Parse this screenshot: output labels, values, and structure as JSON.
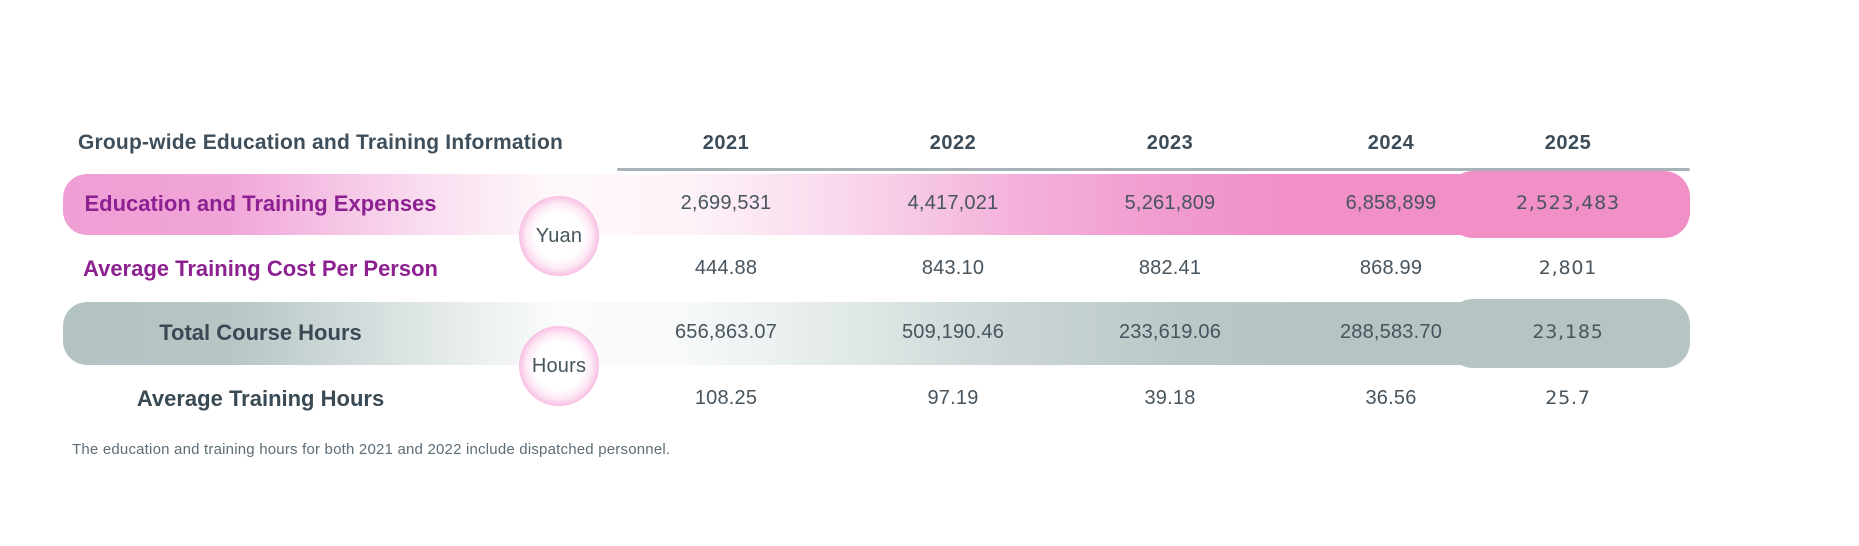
{
  "table": {
    "title": "Group-wide Education and Training Information",
    "years": [
      "2021",
      "2022",
      "2023",
      "2024",
      "2025"
    ],
    "unit_badges": [
      {
        "label": "Yuan"
      },
      {
        "label": "Hours"
      }
    ],
    "rows": [
      {
        "label": "Education and Training Expenses",
        "unit": "Yuan",
        "values": [
          "2,699,531",
          "4,417,021",
          "5,261,809",
          "6,858,899",
          "2,523,483"
        ]
      },
      {
        "label": "Average Training Cost Per Person",
        "unit": "Yuan",
        "values": [
          "444.88",
          "843.10",
          "882.41",
          "868.99",
          "2,801"
        ]
      },
      {
        "label": "Total Course Hours",
        "unit": "Hours",
        "values": [
          "656,863.07",
          "509,190.46",
          "233,619.06",
          "288,583.70",
          "23,185"
        ]
      },
      {
        "label": "Average Training Hours",
        "unit": "Hours",
        "values": [
          "108.25",
          "97.19",
          "39.18",
          "36.56",
          "25.7"
        ]
      }
    ],
    "footnote": "The education and training hours for both 2021 and 2022 include dispatched personnel."
  },
  "chart_data": {
    "type": "table",
    "title": "Group-wide Education and Training Information",
    "columns": [
      "2021",
      "2022",
      "2023",
      "2024",
      "2025"
    ],
    "series": [
      {
        "name": "Education and Training Expenses",
        "unit": "Yuan",
        "values": [
          2699531,
          4417021,
          5261809,
          6858899,
          2523483
        ]
      },
      {
        "name": "Average Training Cost Per Person",
        "unit": "Yuan",
        "values": [
          444.88,
          843.1,
          882.41,
          868.99,
          2801
        ]
      },
      {
        "name": "Total Course Hours",
        "unit": "Hours",
        "values": [
          656863.07,
          509190.46,
          233619.06,
          288583.7,
          23185
        ]
      },
      {
        "name": "Average Training Hours",
        "unit": "Hours",
        "values": [
          108.25,
          97.19,
          39.18,
          36.56,
          25.7
        ]
      }
    ],
    "annotations": [
      "The education and training hours for both 2021 and 2022 include dispatched personnel."
    ],
    "legend_position": "none",
    "grid": false
  },
  "colors": {
    "pink_row": "#F18FC7",
    "pink_row_left": "#EF9FD5",
    "gray_row": "#B7C4C4",
    "purple_label_text": "#8E2191",
    "slate_text": "#3E4F5B",
    "value_text": "#47545E",
    "header_divider": "#A8B3B8",
    "badge_ring": "#F19FD3",
    "footnote_text": "#5C6D77"
  }
}
